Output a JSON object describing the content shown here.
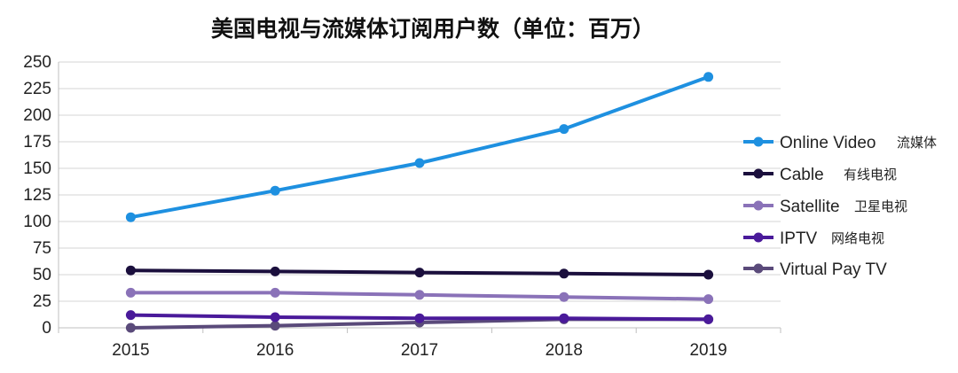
{
  "chart_data": {
    "type": "line",
    "title": "美国电视与流媒体订阅用户数（单位：百万）",
    "xlabel": "",
    "ylabel": "",
    "categories": [
      "2015",
      "2016",
      "2017",
      "2018",
      "2019"
    ],
    "ylim": [
      0,
      250
    ],
    "yticks": [
      0,
      25,
      50,
      75,
      100,
      125,
      150,
      175,
      200,
      225,
      250
    ],
    "grid": true,
    "legend_position": "right",
    "series": [
      {
        "name": "Online Video",
        "name_cn": "流媒体",
        "color": "#1e90e0",
        "values": [
          104,
          129,
          155,
          187,
          236
        ]
      },
      {
        "name": "Cable",
        "name_cn": "有线电视",
        "color": "#1b0f3d",
        "values": [
          54,
          53,
          52,
          51,
          50
        ]
      },
      {
        "name": "Satellite",
        "name_cn": "卫星电视",
        "color": "#8a72b8",
        "values": [
          33,
          33,
          31,
          29,
          27
        ]
      },
      {
        "name": "IPTV",
        "name_cn": "网络电视",
        "color": "#4a1a9a",
        "values": [
          12,
          10,
          9,
          9,
          8
        ]
      },
      {
        "name": "Virtual Pay TV",
        "name_cn": "",
        "color": "#5a4a7a",
        "values": [
          0,
          2,
          5,
          8,
          8
        ]
      }
    ]
  }
}
